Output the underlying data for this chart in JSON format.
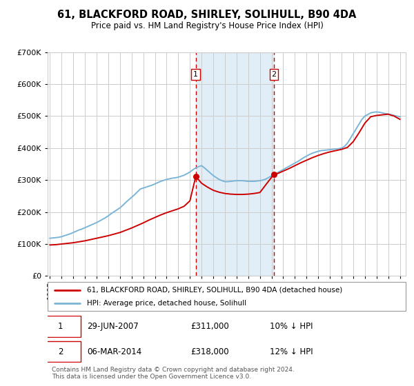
{
  "title": "61, BLACKFORD ROAD, SHIRLEY, SOLIHULL, B90 4DA",
  "subtitle": "Price paid vs. HM Land Registry's House Price Index (HPI)",
  "legend_line1": "61, BLACKFORD ROAD, SHIRLEY, SOLIHULL, B90 4DA (detached house)",
  "legend_line2": "HPI: Average price, detached house, Solihull",
  "sale1_date": "29-JUN-2007",
  "sale1_price": 311000,
  "sale1_pct": "10% ↓ HPI",
  "sale2_date": "06-MAR-2014",
  "sale2_price": 318000,
  "sale2_pct": "12% ↓ HPI",
  "footer": "Contains HM Land Registry data © Crown copyright and database right 2024.\nThis data is licensed under the Open Government Licence v3.0.",
  "hpi_color": "#7ab5d8",
  "paid_color": "#cc0000",
  "sale_marker_color": "#cc0000",
  "vline_color": "#cc0000",
  "shade_color": "#daeaf5",
  "background_color": "#ffffff",
  "grid_color": "#cccccc",
  "ylim": [
    0,
    700000
  ],
  "yticks": [
    0,
    100000,
    200000,
    300000,
    400000,
    500000,
    600000,
    700000
  ],
  "xlim_start": 1994.8,
  "xlim_end": 2025.5,
  "sale1_x": 2007.5,
  "sale2_x": 2014.2,
  "years_hpi": [
    1995,
    1995.25,
    1995.5,
    1995.75,
    1996,
    1996.25,
    1996.5,
    1996.75,
    1997,
    1997.25,
    1997.5,
    1997.75,
    1998,
    1998.25,
    1998.5,
    1998.75,
    1999,
    1999.25,
    1999.5,
    1999.75,
    2000,
    2000.25,
    2000.5,
    2000.75,
    2001,
    2001.25,
    2001.5,
    2001.75,
    2002,
    2002.25,
    2002.5,
    2002.75,
    2003,
    2003.25,
    2003.5,
    2003.75,
    2004,
    2004.25,
    2004.5,
    2004.75,
    2005,
    2005.25,
    2005.5,
    2005.75,
    2006,
    2006.25,
    2006.5,
    2006.75,
    2007,
    2007.25,
    2007.5,
    2007.75,
    2008,
    2008.25,
    2008.5,
    2008.75,
    2009,
    2009.25,
    2009.5,
    2009.75,
    2010,
    2010.25,
    2010.5,
    2010.75,
    2011,
    2011.25,
    2011.5,
    2011.75,
    2012,
    2012.25,
    2012.5,
    2012.75,
    2013,
    2013.25,
    2013.5,
    2013.75,
    2014,
    2014.25,
    2014.5,
    2014.75,
    2015,
    2015.25,
    2015.5,
    2015.75,
    2016,
    2016.25,
    2016.5,
    2016.75,
    2017,
    2017.25,
    2017.5,
    2017.75,
    2018,
    2018.25,
    2018.5,
    2018.75,
    2019,
    2019.25,
    2019.5,
    2019.75,
    2020,
    2020.25,
    2020.5,
    2020.75,
    2021,
    2021.25,
    2021.5,
    2021.75,
    2022,
    2022.25,
    2022.5,
    2022.75,
    2023,
    2023.25,
    2023.5,
    2023.75,
    2024,
    2024.25,
    2024.5,
    2024.75,
    2025
  ],
  "hpi_values": [
    118000,
    119000,
    120000,
    121000,
    123000,
    126000,
    129000,
    132000,
    136000,
    140000,
    144000,
    147000,
    151000,
    155000,
    159000,
    163000,
    167000,
    172000,
    177000,
    182000,
    188000,
    195000,
    201000,
    207000,
    213000,
    221000,
    230000,
    238000,
    246000,
    254000,
    263000,
    272000,
    275000,
    278000,
    281000,
    284000,
    288000,
    292000,
    296000,
    299000,
    302000,
    304000,
    306000,
    307000,
    309000,
    312000,
    315000,
    320000,
    325000,
    332000,
    338000,
    342000,
    345000,
    338000,
    330000,
    322000,
    314000,
    308000,
    302000,
    298000,
    295000,
    295000,
    296000,
    297000,
    298000,
    298000,
    298000,
    297000,
    296000,
    296000,
    296000,
    297000,
    298000,
    300000,
    303000,
    308000,
    313000,
    318000,
    323000,
    328000,
    333000,
    338000,
    343000,
    348000,
    353000,
    358000,
    364000,
    370000,
    375000,
    380000,
    384000,
    387000,
    390000,
    392000,
    393000,
    394000,
    395000,
    396000,
    397000,
    398000,
    400000,
    405000,
    415000,
    430000,
    445000,
    460000,
    475000,
    490000,
    500000,
    505000,
    510000,
    512000,
    513000,
    512000,
    510000,
    508000,
    506000,
    504000,
    502000,
    500000,
    498000
  ],
  "paid_years": [
    1995,
    1995.5,
    1996,
    1996.5,
    1997,
    1997.5,
    1998,
    1998.5,
    1999,
    1999.5,
    2000,
    2000.5,
    2001,
    2001.5,
    2002,
    2002.5,
    2003,
    2003.5,
    2004,
    2004.5,
    2005,
    2005.5,
    2006,
    2006.5,
    2007.0,
    2007.5,
    2008,
    2008.5,
    2009,
    2009.5,
    2010,
    2010.5,
    2011,
    2011.5,
    2012,
    2012.5,
    2013,
    2013.5,
    2014.2,
    2014.5,
    2015,
    2015.5,
    2016,
    2016.5,
    2017,
    2017.5,
    2018,
    2018.5,
    2019,
    2019.5,
    2020,
    2020.5,
    2021,
    2021.5,
    2022,
    2022.5,
    2023,
    2023.5,
    2024,
    2024.5,
    2025
  ],
  "paid_values": [
    97000,
    98000,
    100000,
    102000,
    104000,
    107000,
    110000,
    114000,
    118000,
    122000,
    126000,
    131000,
    136000,
    143000,
    150000,
    158000,
    166000,
    175000,
    183000,
    191000,
    198000,
    204000,
    210000,
    218000,
    235000,
    311000,
    290000,
    278000,
    268000,
    262000,
    258000,
    256000,
    255000,
    255000,
    256000,
    258000,
    261000,
    285000,
    318000,
    320000,
    328000,
    336000,
    345000,
    354000,
    362000,
    370000,
    377000,
    383000,
    388000,
    392000,
    396000,
    402000,
    420000,
    448000,
    478000,
    498000,
    502000,
    504000,
    506000,
    500000,
    490000
  ]
}
